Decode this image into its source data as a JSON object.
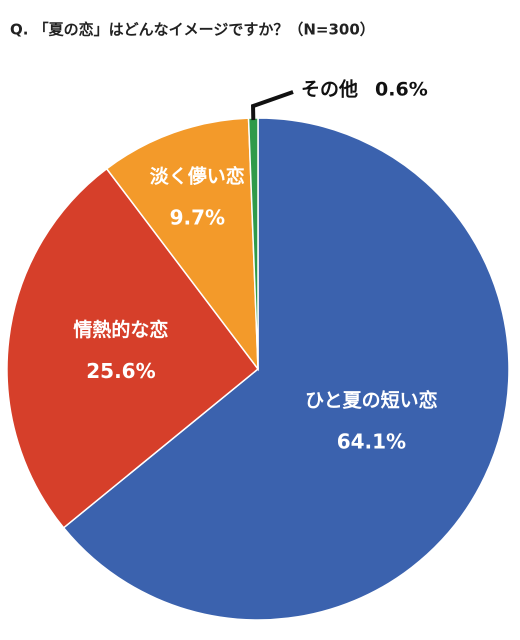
{
  "chart_data": {
    "type": "pie",
    "title": "Q. 「夏の恋」はどんなイメージですか？（N=300）",
    "categories": [
      "ひと夏の短い恋",
      "情熱的な恋",
      "淡く儚い恋",
      "その他"
    ],
    "values": [
      64.1,
      25.6,
      9.7,
      0.6
    ],
    "value_labels": [
      "64.1%",
      "25.6%",
      "9.7%",
      "0.6%"
    ],
    "colors": [
      "#3b62ae",
      "#d63f2a",
      "#f39a2a",
      "#2f9a4a"
    ]
  }
}
